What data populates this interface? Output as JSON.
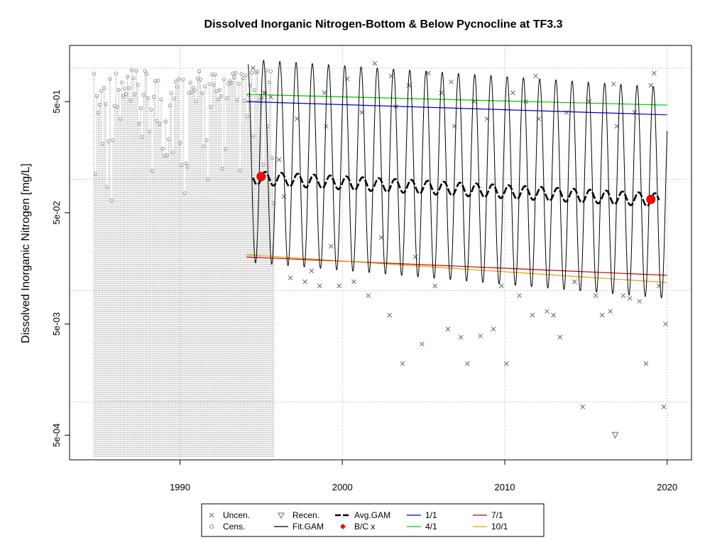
{
  "chart_data": {
    "type": "scatter",
    "title": "Dissolved Inorganic Nitrogen-Bottom & Below Pycnocline at TF3.3",
    "ylabel": "Dissolved Inorganic Nitrogen [mg/L]",
    "xlabel": "",
    "x_scale": "linear",
    "y_scale": "log",
    "xlim": [
      1983.2,
      2021.5
    ],
    "ylim": [
      0.0003,
      1.6
    ],
    "grid": true,
    "x_ticks": [
      {
        "value": 1990,
        "label": "1990"
      },
      {
        "value": 2000,
        "label": "2000"
      },
      {
        "value": 2010,
        "label": "2010"
      },
      {
        "value": 2020,
        "label": "2020"
      }
    ],
    "y_ticks": [
      {
        "value": 0.0005,
        "label": "5e-04"
      },
      {
        "value": 0.005,
        "label": "5e-03"
      },
      {
        "value": 0.05,
        "label": "5e-02"
      },
      {
        "value": 0.5,
        "label": "5e-01"
      }
    ],
    "y_grid": [
      0.001,
      0.01,
      0.1,
      1.0
    ],
    "fit_gam": {
      "name": "Fit.GAM",
      "start": 1994.2,
      "end": 2020.0,
      "period_years": 1.0,
      "peak_month_fraction": 0.15,
      "peak_start": 1.2,
      "peak_end": 0.67,
      "trough_start": 0.018,
      "trough_end": 0.0085
    },
    "avg_gam": {
      "name": "Avg.GAM",
      "start": 1994.5,
      "end": 2019.5,
      "value_start": 0.103,
      "value_end": 0.065,
      "wiggle": 0.06
    },
    "bc_points": {
      "name": "B/C x",
      "points": [
        {
          "x": 1995.0,
          "y": 0.106
        },
        {
          "x": 2019.0,
          "y": 0.066
        }
      ]
    },
    "trend_lines": [
      {
        "name": "1/1",
        "color": "#0000c8",
        "points": [
          {
            "x": 1994.1,
            "y": 0.5
          },
          {
            "x": 2020.0,
            "y": 0.38
          }
        ]
      },
      {
        "name": "4/1",
        "color": "#00c800",
        "points": [
          {
            "x": 1994.1,
            "y": 0.58
          },
          {
            "x": 2020.0,
            "y": 0.465
          }
        ]
      },
      {
        "name": "7/1",
        "color": "#c80000",
        "points": [
          {
            "x": 1994.1,
            "y": 0.02
          },
          {
            "x": 2020.0,
            "y": 0.0137
          }
        ]
      },
      {
        "name": "10/1",
        "color": "#e6a000",
        "points": [
          {
            "x": 1994.1,
            "y": 0.021
          },
          {
            "x": 2020.0,
            "y": 0.0118
          }
        ]
      }
    ],
    "censored_data": {
      "name": "Cens.",
      "x_start": 1984.7,
      "x_end": 1995.8,
      "spacing_years": 0.09,
      "low_value": 0.00032
    },
    "uncensored_data": {
      "name": "Uncen.",
      "points": [
        {
          "x": 1994.5,
          "y": 1.0
        },
        {
          "x": 1995.2,
          "y": 0.6
        },
        {
          "x": 1995.6,
          "y": 0.55
        },
        {
          "x": 1996.1,
          "y": 0.15
        },
        {
          "x": 1996.4,
          "y": 0.07
        },
        {
          "x": 1996.8,
          "y": 0.013
        },
        {
          "x": 1997.2,
          "y": 0.35
        },
        {
          "x": 1997.7,
          "y": 0.012
        },
        {
          "x": 1998.1,
          "y": 0.015
        },
        {
          "x": 1998.6,
          "y": 0.011
        },
        {
          "x": 1999.0,
          "y": 0.3
        },
        {
          "x": 1999.3,
          "y": 0.025
        },
        {
          "x": 1999.8,
          "y": 0.011
        },
        {
          "x": 2000.3,
          "y": 0.8
        },
        {
          "x": 2000.7,
          "y": 0.012
        },
        {
          "x": 2001.2,
          "y": 0.4
        },
        {
          "x": 2001.6,
          "y": 0.009
        },
        {
          "x": 2002.0,
          "y": 1.1
        },
        {
          "x": 2002.4,
          "y": 0.03
        },
        {
          "x": 2002.9,
          "y": 0.006
        },
        {
          "x": 2003.3,
          "y": 0.45
        },
        {
          "x": 2003.7,
          "y": 0.0022
        },
        {
          "x": 2004.1,
          "y": 0.7
        },
        {
          "x": 2004.5,
          "y": 0.02
        },
        {
          "x": 2004.9,
          "y": 0.0033
        },
        {
          "x": 2005.3,
          "y": 0.9
        },
        {
          "x": 2005.7,
          "y": 0.011
        },
        {
          "x": 2006.1,
          "y": 0.6
        },
        {
          "x": 2006.5,
          "y": 0.0045
        },
        {
          "x": 2006.9,
          "y": 0.3
        },
        {
          "x": 2007.3,
          "y": 0.0038
        },
        {
          "x": 2007.7,
          "y": 0.0022
        },
        {
          "x": 2008.1,
          "y": 0.5
        },
        {
          "x": 2008.5,
          "y": 0.0039
        },
        {
          "x": 2008.9,
          "y": 0.35
        },
        {
          "x": 2009.3,
          "y": 0.0045
        },
        {
          "x": 2009.8,
          "y": 0.011
        },
        {
          "x": 2010.1,
          "y": 0.0022
        },
        {
          "x": 2010.5,
          "y": 0.6
        },
        {
          "x": 2010.9,
          "y": 0.009
        },
        {
          "x": 2011.3,
          "y": 0.5
        },
        {
          "x": 2011.7,
          "y": 0.006
        },
        {
          "x": 2012.1,
          "y": 0.35
        },
        {
          "x": 2012.6,
          "y": 0.0065
        },
        {
          "x": 2013.0,
          "y": 0.006
        },
        {
          "x": 2013.4,
          "y": 0.0038
        },
        {
          "x": 2013.8,
          "y": 0.4
        },
        {
          "x": 2014.3,
          "y": 0.012
        },
        {
          "x": 2014.8,
          "y": 0.0009
        },
        {
          "x": 2015.2,
          "y": 0.5
        },
        {
          "x": 2015.6,
          "y": 0.009
        },
        {
          "x": 2016.0,
          "y": 0.006
        },
        {
          "x": 2016.5,
          "y": 0.0065
        },
        {
          "x": 2016.9,
          "y": 0.3
        },
        {
          "x": 2017.3,
          "y": 0.009
        },
        {
          "x": 2017.7,
          "y": 0.0085
        },
        {
          "x": 2018.0,
          "y": 0.4
        },
        {
          "x": 2018.3,
          "y": 0.008
        },
        {
          "x": 2018.7,
          "y": 0.0022
        },
        {
          "x": 2019.2,
          "y": 0.9
        },
        {
          "x": 2019.5,
          "y": 0.011
        },
        {
          "x": 2019.8,
          "y": 0.0009
        },
        {
          "x": 2019.9,
          "y": 0.005
        },
        {
          "x": 1998.9,
          "y": 0.6
        },
        {
          "x": 2003.0,
          "y": 0.85
        },
        {
          "x": 2006.7,
          "y": 0.75
        },
        {
          "x": 2011.9,
          "y": 0.85
        },
        {
          "x": 2016.7,
          "y": 0.72
        },
        {
          "x": 2019.0,
          "y": 0.7
        }
      ]
    },
    "recensored_data": {
      "name": "Recen.",
      "points": [
        {
          "x": 2016.8,
          "y": 0.0005
        }
      ]
    },
    "legend": {
      "position": "bottom",
      "entries": [
        {
          "label": "Uncen.",
          "marker": "x",
          "color": "#5b6b7b"
        },
        {
          "label": "Cens.",
          "marker": "circle-open",
          "color": "#808080"
        },
        {
          "label": "Recen.",
          "marker": "triangle-down",
          "color": "#5b6b7b"
        },
        {
          "label": "Fit.GAM",
          "marker": "line",
          "color": "#000000"
        },
        {
          "label": "Avg.GAM",
          "marker": "dashed-line",
          "color": "#000000"
        },
        {
          "label": "B/C x",
          "marker": "diamond",
          "color": "#ff0000"
        },
        {
          "label": "1/1",
          "marker": "line",
          "color": "#0000c8"
        },
        {
          "label": "4/1",
          "marker": "line",
          "color": "#00c800"
        },
        {
          "label": "7/1",
          "marker": "line",
          "color": "#c80000"
        },
        {
          "label": "10/1",
          "marker": "line",
          "color": "#e6a000"
        }
      ]
    }
  }
}
